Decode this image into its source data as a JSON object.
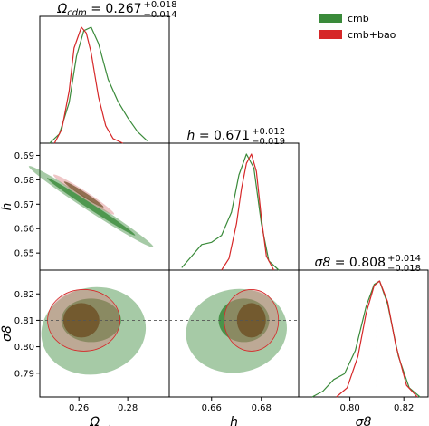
{
  "colors": {
    "cmb": "#3a8a3a",
    "cmb_bao": "#d62728",
    "cmb_fill": "#3a8a3a",
    "cmb_bao_fill": "#d98080"
  },
  "legend": [
    {
      "label": "cmb",
      "color": "#3a8a3a"
    },
    {
      "label": "cmb+bao",
      "color": "#d62728"
    }
  ],
  "titles": {
    "omega": {
      "name": "Ω_cdm",
      "value": "0.267",
      "upper": "+0.018",
      "lower": "−0.014"
    },
    "h": {
      "name": "h",
      "value": "0.671",
      "upper": "+0.012",
      "lower": "−0.019"
    },
    "sigma8": {
      "name": "σ8",
      "value": "0.808",
      "upper": "+0.014",
      "lower": "−0.018"
    }
  },
  "axes": {
    "omega": {
      "label": "Ω_cdm",
      "ticks": [
        "0.26",
        "0.28"
      ],
      "tick_values": [
        0.26,
        0.28
      ],
      "range": [
        0.244,
        0.297
      ]
    },
    "h": {
      "label": "h",
      "ticks": [
        "0.66",
        "0.68"
      ],
      "tick_values": [
        0.66,
        0.68
      ],
      "range": [
        0.643,
        0.695
      ]
    },
    "sigma8": {
      "label": "σ8",
      "ticks": [
        "0.80",
        "0.82"
      ],
      "tick_values": [
        0.8,
        0.82
      ],
      "range": [
        0.781,
        0.829
      ]
    },
    "h_y_ticks": [
      "0.69",
      "0.68",
      "0.67",
      "0.66",
      "0.65"
    ],
    "h_y_tick_values": [
      0.69,
      0.68,
      0.67,
      0.66,
      0.65
    ],
    "s8_y_ticks": [
      "0.82",
      "0.81",
      "0.80",
      "0.79"
    ],
    "s8_y_tick_values": [
      0.82,
      0.81,
      0.8,
      0.79
    ]
  },
  "chart_data": {
    "type": "triangle-corner-plot",
    "parameters": [
      "Ω_cdm",
      "h",
      "σ8"
    ],
    "series": [
      {
        "name": "cmb",
        "marginals": {
          "omega": {
            "x": [
              0.248,
              0.252,
              0.256,
              0.259,
              0.262,
              0.265,
              0.268,
              0.272,
              0.276,
              0.28,
              0.284,
              0.288
            ],
            "y": [
              0.0,
              0.08,
              0.35,
              0.75,
              0.97,
              1.0,
              0.86,
              0.55,
              0.36,
              0.22,
              0.1,
              0.02
            ]
          },
          "h": {
            "x": [
              0.648,
              0.652,
              0.656,
              0.66,
              0.664,
              0.668,
              0.671,
              0.674,
              0.677,
              0.68,
              0.683,
              0.687
            ],
            "y": [
              0.02,
              0.12,
              0.22,
              0.24,
              0.3,
              0.5,
              0.82,
              1.0,
              0.88,
              0.4,
              0.08,
              0.0
            ]
          },
          "sigma8": {
            "x": [
              0.786,
              0.79,
              0.794,
              0.798,
              0.802,
              0.806,
              0.809,
              0.811,
              0.814,
              0.818,
              0.822,
              0.826
            ],
            "y": [
              0.0,
              0.05,
              0.15,
              0.2,
              0.4,
              0.78,
              0.97,
              1.0,
              0.8,
              0.35,
              0.08,
              0.0
            ]
          }
        }
      },
      {
        "name": "cmb+bao",
        "marginals": {
          "omega": {
            "x": [
              0.25,
              0.253,
              0.256,
              0.258,
              0.261,
              0.263,
              0.265,
              0.268,
              0.271,
              0.274,
              0.278
            ],
            "y": [
              0.0,
              0.12,
              0.45,
              0.82,
              1.0,
              0.95,
              0.78,
              0.4,
              0.15,
              0.04,
              0.0
            ]
          },
          "h": {
            "x": [
              0.664,
              0.667,
              0.67,
              0.672,
              0.674,
              0.676,
              0.678,
              0.68,
              0.682,
              0.685
            ],
            "y": [
              0.0,
              0.1,
              0.4,
              0.7,
              0.92,
              1.0,
              0.85,
              0.45,
              0.12,
              0.0
            ]
          },
          "sigma8": {
            "x": [
              0.795,
              0.799,
              0.803,
              0.806,
              0.809,
              0.811,
              0.814,
              0.817,
              0.821,
              0.825
            ],
            "y": [
              0.0,
              0.08,
              0.35,
              0.72,
              0.96,
              1.0,
              0.82,
              0.45,
              0.1,
              0.0
            ]
          }
        }
      }
    ],
    "reference_lines": {
      "sigma8": 0.81
    }
  }
}
